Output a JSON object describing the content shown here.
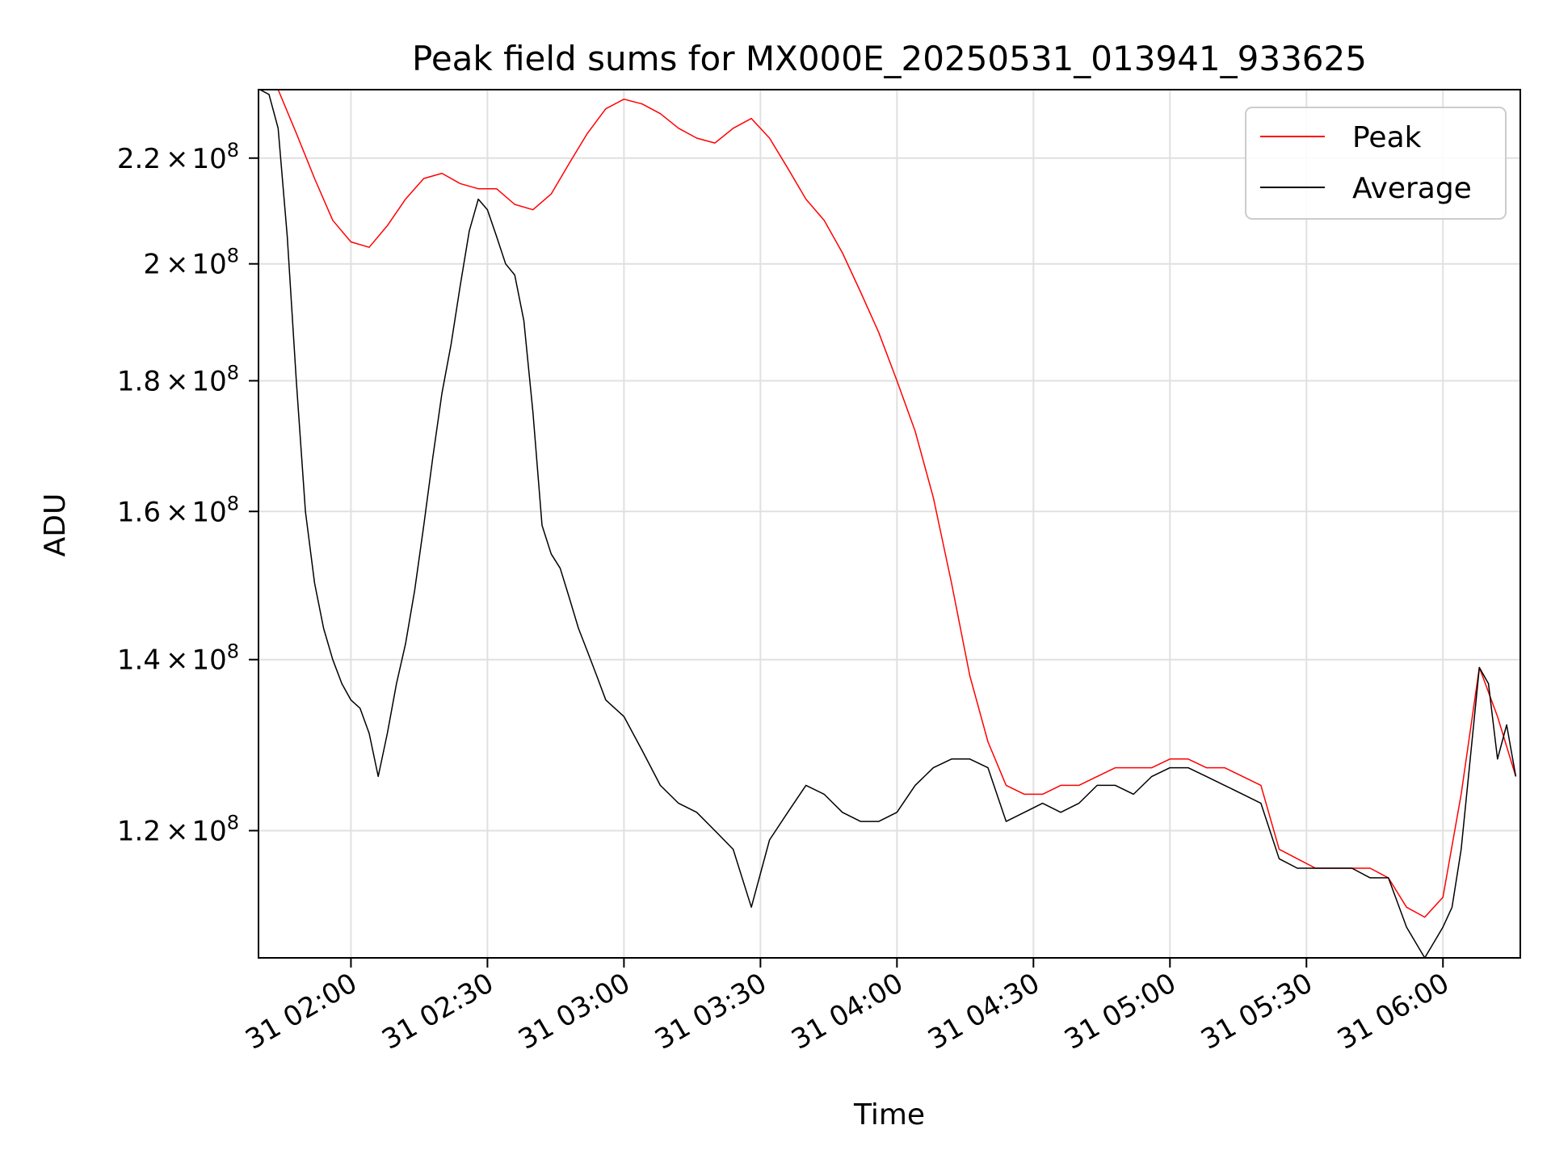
{
  "chart_data": {
    "type": "line",
    "title": "Peak field sums for MX000E_20250531_013941_933625",
    "xlabel": "Time",
    "ylabel": "ADU",
    "x_ticks": [
      "31 02:00",
      "31 02:30",
      "31 03:00",
      "31 03:30",
      "31 04:00",
      "31 04:30",
      "31 05:00",
      "31 05:30",
      "31 06:00"
    ],
    "y_ticks": [
      {
        "value": 120000000,
        "mantissa": "1.2",
        "exp": "8"
      },
      {
        "value": 140000000,
        "mantissa": "1.4",
        "exp": "8"
      },
      {
        "value": 160000000,
        "mantissa": "1.6",
        "exp": "8"
      },
      {
        "value": 180000000,
        "mantissa": "1.8",
        "exp": "8"
      },
      {
        "value": 200000000,
        "mantissa": "2",
        "exp": "8"
      },
      {
        "value": 220000000,
        "mantissa": "2.2",
        "exp": "8"
      }
    ],
    "times_symbol": "×",
    "base": "10",
    "xlim": [
      "01:39:41",
      "06:17"
    ],
    "ylim": [
      107000000,
      234000000
    ],
    "yscale": "log",
    "grid": true,
    "legend_position": "top-right",
    "series": [
      {
        "name": "Peak",
        "color": "#ff0000",
        "t": [
          "01:40",
          "01:44",
          "01:48",
          "01:52",
          "01:56",
          "02:00",
          "02:04",
          "02:08",
          "02:12",
          "02:16",
          "02:20",
          "02:24",
          "02:28",
          "02:32",
          "02:36",
          "02:40",
          "02:44",
          "02:48",
          "02:52",
          "02:56",
          "03:00",
          "03:04",
          "03:08",
          "03:12",
          "03:16",
          "03:20",
          "03:24",
          "03:28",
          "03:32",
          "03:36",
          "03:40",
          "03:44",
          "03:48",
          "03:52",
          "03:56",
          "04:00",
          "04:04",
          "04:08",
          "04:12",
          "04:16",
          "04:20",
          "04:24",
          "04:28",
          "04:32",
          "04:36",
          "04:40",
          "04:44",
          "04:48",
          "04:52",
          "04:56",
          "05:00",
          "05:04",
          "05:08",
          "05:12",
          "05:16",
          "05:20",
          "05:24",
          "05:28",
          "05:32",
          "05:36",
          "05:40",
          "05:44",
          "05:48",
          "05:52",
          "05:56",
          "06:00",
          "06:04",
          "06:08",
          "06:12",
          "06:16"
        ],
        "values": [
          234000000,
          234000000,
          225000000,
          216000000,
          208000000,
          204000000,
          203000000,
          207000000,
          212000000,
          216000000,
          217000000,
          215000000,
          214000000,
          214000000,
          211000000,
          210000000,
          213000000,
          219000000,
          225000000,
          230000000,
          232000000,
          231000000,
          229000000,
          226000000,
          224000000,
          223000000,
          226000000,
          228000000,
          224000000,
          218000000,
          212000000,
          208000000,
          202000000,
          195000000,
          188000000,
          180000000,
          172000000,
          162000000,
          150000000,
          138000000,
          130000000,
          125000000,
          124000000,
          124000000,
          125000000,
          125000000,
          126000000,
          127000000,
          127000000,
          127000000,
          128000000,
          128000000,
          127000000,
          127000000,
          126000000,
          125000000,
          118000000,
          117000000,
          116000000,
          116000000,
          116000000,
          116000000,
          115000000,
          112000000,
          111000000,
          113000000,
          124000000,
          139000000,
          133000000,
          126000000
        ]
      },
      {
        "name": "Average",
        "color": "#000000",
        "t": [
          "01:40",
          "01:42",
          "01:44",
          "01:46",
          "01:48",
          "01:50",
          "01:52",
          "01:54",
          "01:56",
          "01:58",
          "02:00",
          "02:02",
          "02:04",
          "02:06",
          "02:08",
          "02:10",
          "02:12",
          "02:14",
          "02:16",
          "02:18",
          "02:20",
          "02:22",
          "02:24",
          "02:26",
          "02:28",
          "02:30",
          "02:32",
          "02:34",
          "02:36",
          "02:38",
          "02:40",
          "02:42",
          "02:44",
          "02:46",
          "02:48",
          "02:50",
          "02:52",
          "02:54",
          "02:56",
          "02:58",
          "03:00",
          "03:04",
          "03:08",
          "03:12",
          "03:16",
          "03:20",
          "03:24",
          "03:28",
          "03:32",
          "03:36",
          "03:40",
          "03:44",
          "03:48",
          "03:52",
          "03:56",
          "04:00",
          "04:04",
          "04:08",
          "04:12",
          "04:16",
          "04:20",
          "04:24",
          "04:28",
          "04:32",
          "04:36",
          "04:40",
          "04:44",
          "04:48",
          "04:52",
          "04:56",
          "05:00",
          "05:04",
          "05:08",
          "05:12",
          "05:16",
          "05:20",
          "05:24",
          "05:28",
          "05:32",
          "05:36",
          "05:40",
          "05:44",
          "05:48",
          "05:52",
          "05:56",
          "06:00",
          "06:02",
          "06:04",
          "06:06",
          "06:08",
          "06:10",
          "06:12",
          "06:14",
          "06:16"
        ],
        "values": [
          234000000,
          233000000,
          226000000,
          205000000,
          180000000,
          160000000,
          150000000,
          144000000,
          140000000,
          137000000,
          135000000,
          134000000,
          131000000,
          126000000,
          131000000,
          137000000,
          142000000,
          149000000,
          158000000,
          168000000,
          178000000,
          186000000,
          196000000,
          206000000,
          212000000,
          210000000,
          205000000,
          200000000,
          198000000,
          190000000,
          175000000,
          158000000,
          154000000,
          152000000,
          148000000,
          144000000,
          141000000,
          138000000,
          135000000,
          134000000,
          133000000,
          129000000,
          125000000,
          123000000,
          122000000,
          120000000,
          118000000,
          112000000,
          119000000,
          122000000,
          125000000,
          124000000,
          122000000,
          121000000,
          121000000,
          122000000,
          125000000,
          127000000,
          128000000,
          128000000,
          127000000,
          121000000,
          122000000,
          123000000,
          122000000,
          123000000,
          125000000,
          125000000,
          124000000,
          126000000,
          127000000,
          127000000,
          126000000,
          125000000,
          124000000,
          123000000,
          117000000,
          116000000,
          116000000,
          116000000,
          116000000,
          115000000,
          115000000,
          110000000,
          107000000,
          110000000,
          112000000,
          118000000,
          128000000,
          139000000,
          137000000,
          128000000,
          132000000,
          126000000
        ]
      }
    ]
  }
}
